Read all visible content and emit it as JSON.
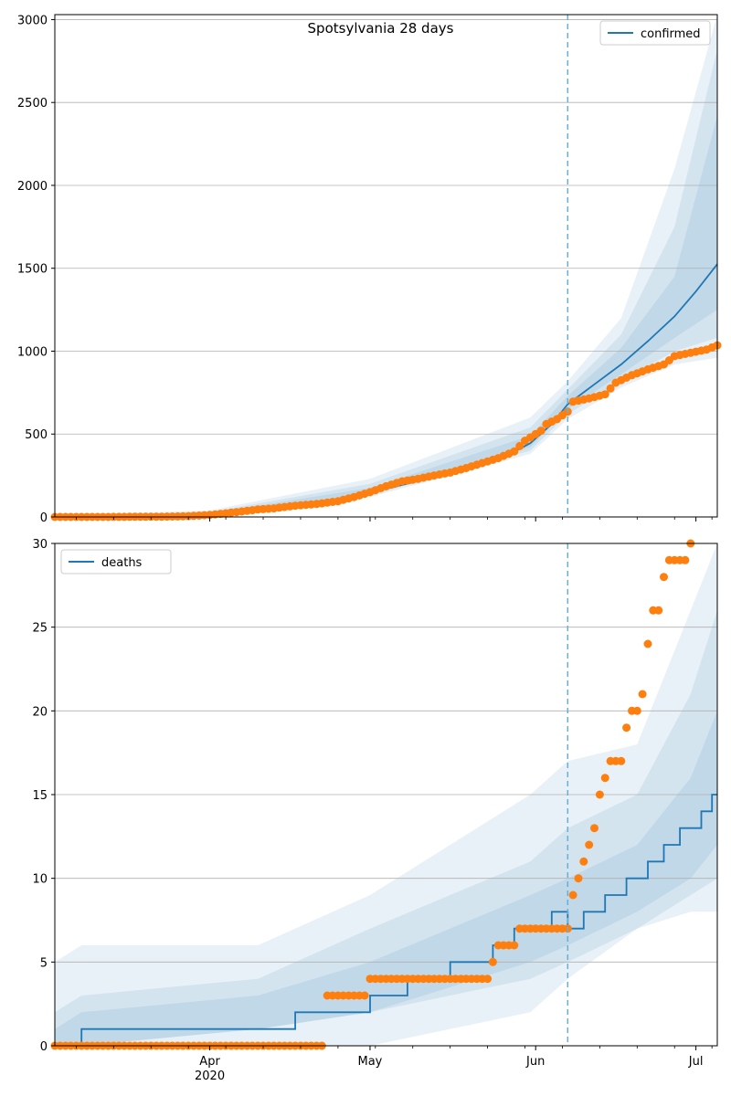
{
  "colors": {
    "model_line": "#1f77b4",
    "observed_points": "#ff7f0e",
    "band": "#1f77b4",
    "grid": "#b0b0b0",
    "forecast_start_line": "#6baed6"
  },
  "chart_data": [
    {
      "type": "line",
      "title": "Spotsylvania 28 days",
      "xlabel": "",
      "ylabel": "",
      "x_range": [
        "2020-03-03",
        "2020-07-05"
      ],
      "ylim": [
        0,
        3030
      ],
      "y_ticks": [
        0,
        500,
        1000,
        1500,
        2000,
        2500,
        3000
      ],
      "x_ticks": [
        {
          "date": "2020-04-01",
          "label": "Apr"
        },
        {
          "date": "2020-05-01",
          "label": "May"
        },
        {
          "date": "2020-06-01",
          "label": "Jun"
        },
        {
          "date": "2020-07-01",
          "label": "Jul"
        }
      ],
      "x_tick_sublabel": "2020",
      "forecast_start": "2020-06-07",
      "grid": "horizontal",
      "legend": {
        "position": "top-right",
        "entries": [
          "confirmed"
        ]
      },
      "series": [
        {
          "name": "confirmed",
          "kind": "model",
          "points": [
            [
              "2020-03-03",
              0
            ],
            [
              "2020-03-20",
              2
            ],
            [
              "2020-03-27",
              8
            ],
            [
              "2020-04-01",
              15
            ],
            [
              "2020-04-06",
              28
            ],
            [
              "2020-04-11",
              45
            ],
            [
              "2020-04-16",
              60
            ],
            [
              "2020-04-21",
              75
            ],
            [
              "2020-04-26",
              95
            ],
            [
              "2020-05-01",
              150
            ],
            [
              "2020-05-06",
              185
            ],
            [
              "2020-05-11",
              225
            ],
            [
              "2020-05-16",
              262
            ],
            [
              "2020-05-21",
              305
            ],
            [
              "2020-05-26",
              360
            ],
            [
              "2020-05-31",
              445
            ],
            [
              "2020-06-04",
              560
            ],
            [
              "2020-06-07",
              680
            ],
            [
              "2020-06-12",
              800
            ],
            [
              "2020-06-17",
              920
            ],
            [
              "2020-06-22",
              1060
            ],
            [
              "2020-06-27",
              1210
            ],
            [
              "2020-07-01",
              1360
            ],
            [
              "2020-07-05",
              1525
            ]
          ]
        },
        {
          "kind": "observed",
          "points": [
            [
              "2020-03-03",
              0
            ],
            [
              "2020-03-12",
              0
            ],
            [
              "2020-03-24",
              2
            ],
            [
              "2020-03-28",
              5
            ],
            [
              "2020-04-01",
              12
            ],
            [
              "2020-04-04",
              22
            ],
            [
              "2020-04-07",
              33
            ],
            [
              "2020-04-10",
              45
            ],
            [
              "2020-04-13",
              52
            ],
            [
              "2020-04-17",
              68
            ],
            [
              "2020-04-21",
              78
            ],
            [
              "2020-04-25",
              95
            ],
            [
              "2020-04-28",
              120
            ],
            [
              "2020-05-01",
              150
            ],
            [
              "2020-05-04",
              185
            ],
            [
              "2020-05-07",
              215
            ],
            [
              "2020-05-10",
              230
            ],
            [
              "2020-05-13",
              250
            ],
            [
              "2020-05-16",
              268
            ],
            [
              "2020-05-19",
              295
            ],
            [
              "2020-05-22",
              325
            ],
            [
              "2020-05-25",
              355
            ],
            [
              "2020-05-28",
              395
            ],
            [
              "2020-05-30",
              460
            ],
            [
              "2020-06-02",
              520
            ],
            [
              "2020-06-03",
              560
            ],
            [
              "2020-06-05",
              590
            ],
            [
              "2020-06-07",
              635
            ],
            [
              "2020-06-08",
              695
            ],
            [
              "2020-06-11",
              715
            ],
            [
              "2020-06-14",
              740
            ],
            [
              "2020-06-16",
              810
            ],
            [
              "2020-06-19",
              855
            ],
            [
              "2020-06-22",
              890
            ],
            [
              "2020-06-25",
              920
            ],
            [
              "2020-06-27",
              970
            ],
            [
              "2020-06-30",
              990
            ],
            [
              "2020-07-03",
              1010
            ],
            [
              "2020-07-05",
              1035
            ]
          ]
        }
      ],
      "bands": [
        {
          "date": [
            "2020-03-03",
            "2020-04-01",
            "2020-05-01",
            "2020-05-31",
            "2020-06-07",
            "2020-06-17",
            "2020-06-27",
            "2020-07-05"
          ],
          "lower": [
            0,
            8,
            120,
            380,
            590,
            780,
            920,
            960
          ],
          "upper": [
            10,
            40,
            230,
            600,
            820,
            1200,
            2100,
            3030
          ]
        },
        {
          "date": [
            "2020-03-03",
            "2020-04-01",
            "2020-05-01",
            "2020-05-31",
            "2020-06-07",
            "2020-06-17",
            "2020-06-27",
            "2020-07-05"
          ],
          "lower": [
            0,
            10,
            130,
            400,
            620,
            820,
            1000,
            1080
          ],
          "upper": [
            6,
            30,
            200,
            540,
            770,
            1100,
            1750,
            2820
          ]
        },
        {
          "date": [
            "2020-03-03",
            "2020-04-01",
            "2020-05-01",
            "2020-05-31",
            "2020-06-07",
            "2020-06-17",
            "2020-06-27",
            "2020-07-05"
          ],
          "lower": [
            0,
            12,
            140,
            420,
            650,
            860,
            1080,
            1250
          ],
          "upper": [
            4,
            22,
            175,
            490,
            730,
            1020,
            1450,
            2420
          ]
        }
      ]
    },
    {
      "type": "line",
      "title": "",
      "xlabel": "",
      "ylabel": "",
      "x_range": [
        "2020-03-03",
        "2020-07-05"
      ],
      "ylim": [
        0,
        30
      ],
      "y_ticks": [
        0,
        5,
        10,
        15,
        20,
        25,
        30
      ],
      "x_ticks": [
        {
          "date": "2020-04-01",
          "label": "Apr"
        },
        {
          "date": "2020-05-01",
          "label": "May"
        },
        {
          "date": "2020-06-01",
          "label": "Jun"
        },
        {
          "date": "2020-07-01",
          "label": "Jul"
        }
      ],
      "x_tick_sublabel": "2020",
      "forecast_start": "2020-06-07",
      "grid": "horizontal",
      "legend": {
        "position": "top-left",
        "entries": [
          "deaths"
        ]
      },
      "series": [
        {
          "name": "deaths",
          "kind": "model-step",
          "points": [
            [
              "2020-03-03",
              0
            ],
            [
              "2020-03-08",
              1
            ],
            [
              "2020-04-17",
              2
            ],
            [
              "2020-05-01",
              3
            ],
            [
              "2020-05-08",
              4
            ],
            [
              "2020-05-16",
              5
            ],
            [
              "2020-05-24",
              6
            ],
            [
              "2020-05-28",
              7
            ],
            [
              "2020-06-04",
              8
            ],
            [
              "2020-06-07",
              7
            ],
            [
              "2020-06-10",
              8
            ],
            [
              "2020-06-14",
              9
            ],
            [
              "2020-06-18",
              10
            ],
            [
              "2020-06-22",
              11
            ],
            [
              "2020-06-25",
              12
            ],
            [
              "2020-06-28",
              13
            ],
            [
              "2020-07-02",
              14
            ],
            [
              "2020-07-04",
              15
            ],
            [
              "2020-07-05",
              15
            ]
          ]
        },
        {
          "kind": "observed",
          "points": [
            [
              "2020-03-03",
              0
            ],
            [
              "2020-04-22",
              0
            ],
            [
              "2020-04-23",
              3
            ],
            [
              "2020-04-30",
              3
            ],
            [
              "2020-05-01",
              4
            ],
            [
              "2020-05-23",
              4
            ],
            [
              "2020-05-24",
              5
            ],
            [
              "2020-05-25",
              6
            ],
            [
              "2020-05-28",
              6
            ],
            [
              "2020-05-29",
              7
            ],
            [
              "2020-06-07",
              7
            ],
            [
              "2020-06-08",
              9
            ],
            [
              "2020-06-09",
              10
            ],
            [
              "2020-06-10",
              11
            ],
            [
              "2020-06-11",
              12
            ],
            [
              "2020-06-12",
              13
            ],
            [
              "2020-06-13",
              15
            ],
            [
              "2020-06-14",
              16
            ],
            [
              "2020-06-15",
              17
            ],
            [
              "2020-06-17",
              17
            ],
            [
              "2020-06-18",
              19
            ],
            [
              "2020-06-19",
              20
            ],
            [
              "2020-06-20",
              20
            ],
            [
              "2020-06-21",
              21
            ],
            [
              "2020-06-22",
              24
            ],
            [
              "2020-06-23",
              26
            ],
            [
              "2020-06-24",
              26
            ],
            [
              "2020-06-25",
              28
            ],
            [
              "2020-06-26",
              29
            ],
            [
              "2020-06-29",
              29
            ],
            [
              "2020-06-30",
              30
            ]
          ]
        }
      ],
      "bands": [
        {
          "date": [
            "2020-03-03",
            "2020-03-08",
            "2020-04-10",
            "2020-05-01",
            "2020-05-31",
            "2020-06-07",
            "2020-06-20",
            "2020-06-30",
            "2020-07-05"
          ],
          "lower": [
            0,
            0,
            0,
            0,
            2,
            4,
            7,
            8,
            8
          ],
          "upper": [
            5,
            6,
            6,
            9,
            15,
            17,
            18,
            26,
            30
          ]
        },
        {
          "date": [
            "2020-03-03",
            "2020-03-08",
            "2020-04-10",
            "2020-05-01",
            "2020-05-31",
            "2020-06-07",
            "2020-06-20",
            "2020-06-30",
            "2020-07-05"
          ],
          "lower": [
            0,
            0,
            1,
            2,
            4,
            5,
            7,
            9,
            10
          ],
          "upper": [
            2,
            3,
            4,
            7,
            11,
            13,
            15,
            21,
            26
          ]
        },
        {
          "date": [
            "2020-03-03",
            "2020-03-08",
            "2020-04-10",
            "2020-05-01",
            "2020-05-31",
            "2020-06-07",
            "2020-06-20",
            "2020-06-30",
            "2020-07-05"
          ],
          "lower": [
            0,
            0,
            1,
            2,
            5,
            6,
            8,
            10,
            12
          ],
          "upper": [
            1,
            2,
            3,
            5,
            9,
            10,
            12,
            16,
            20
          ]
        }
      ]
    }
  ]
}
